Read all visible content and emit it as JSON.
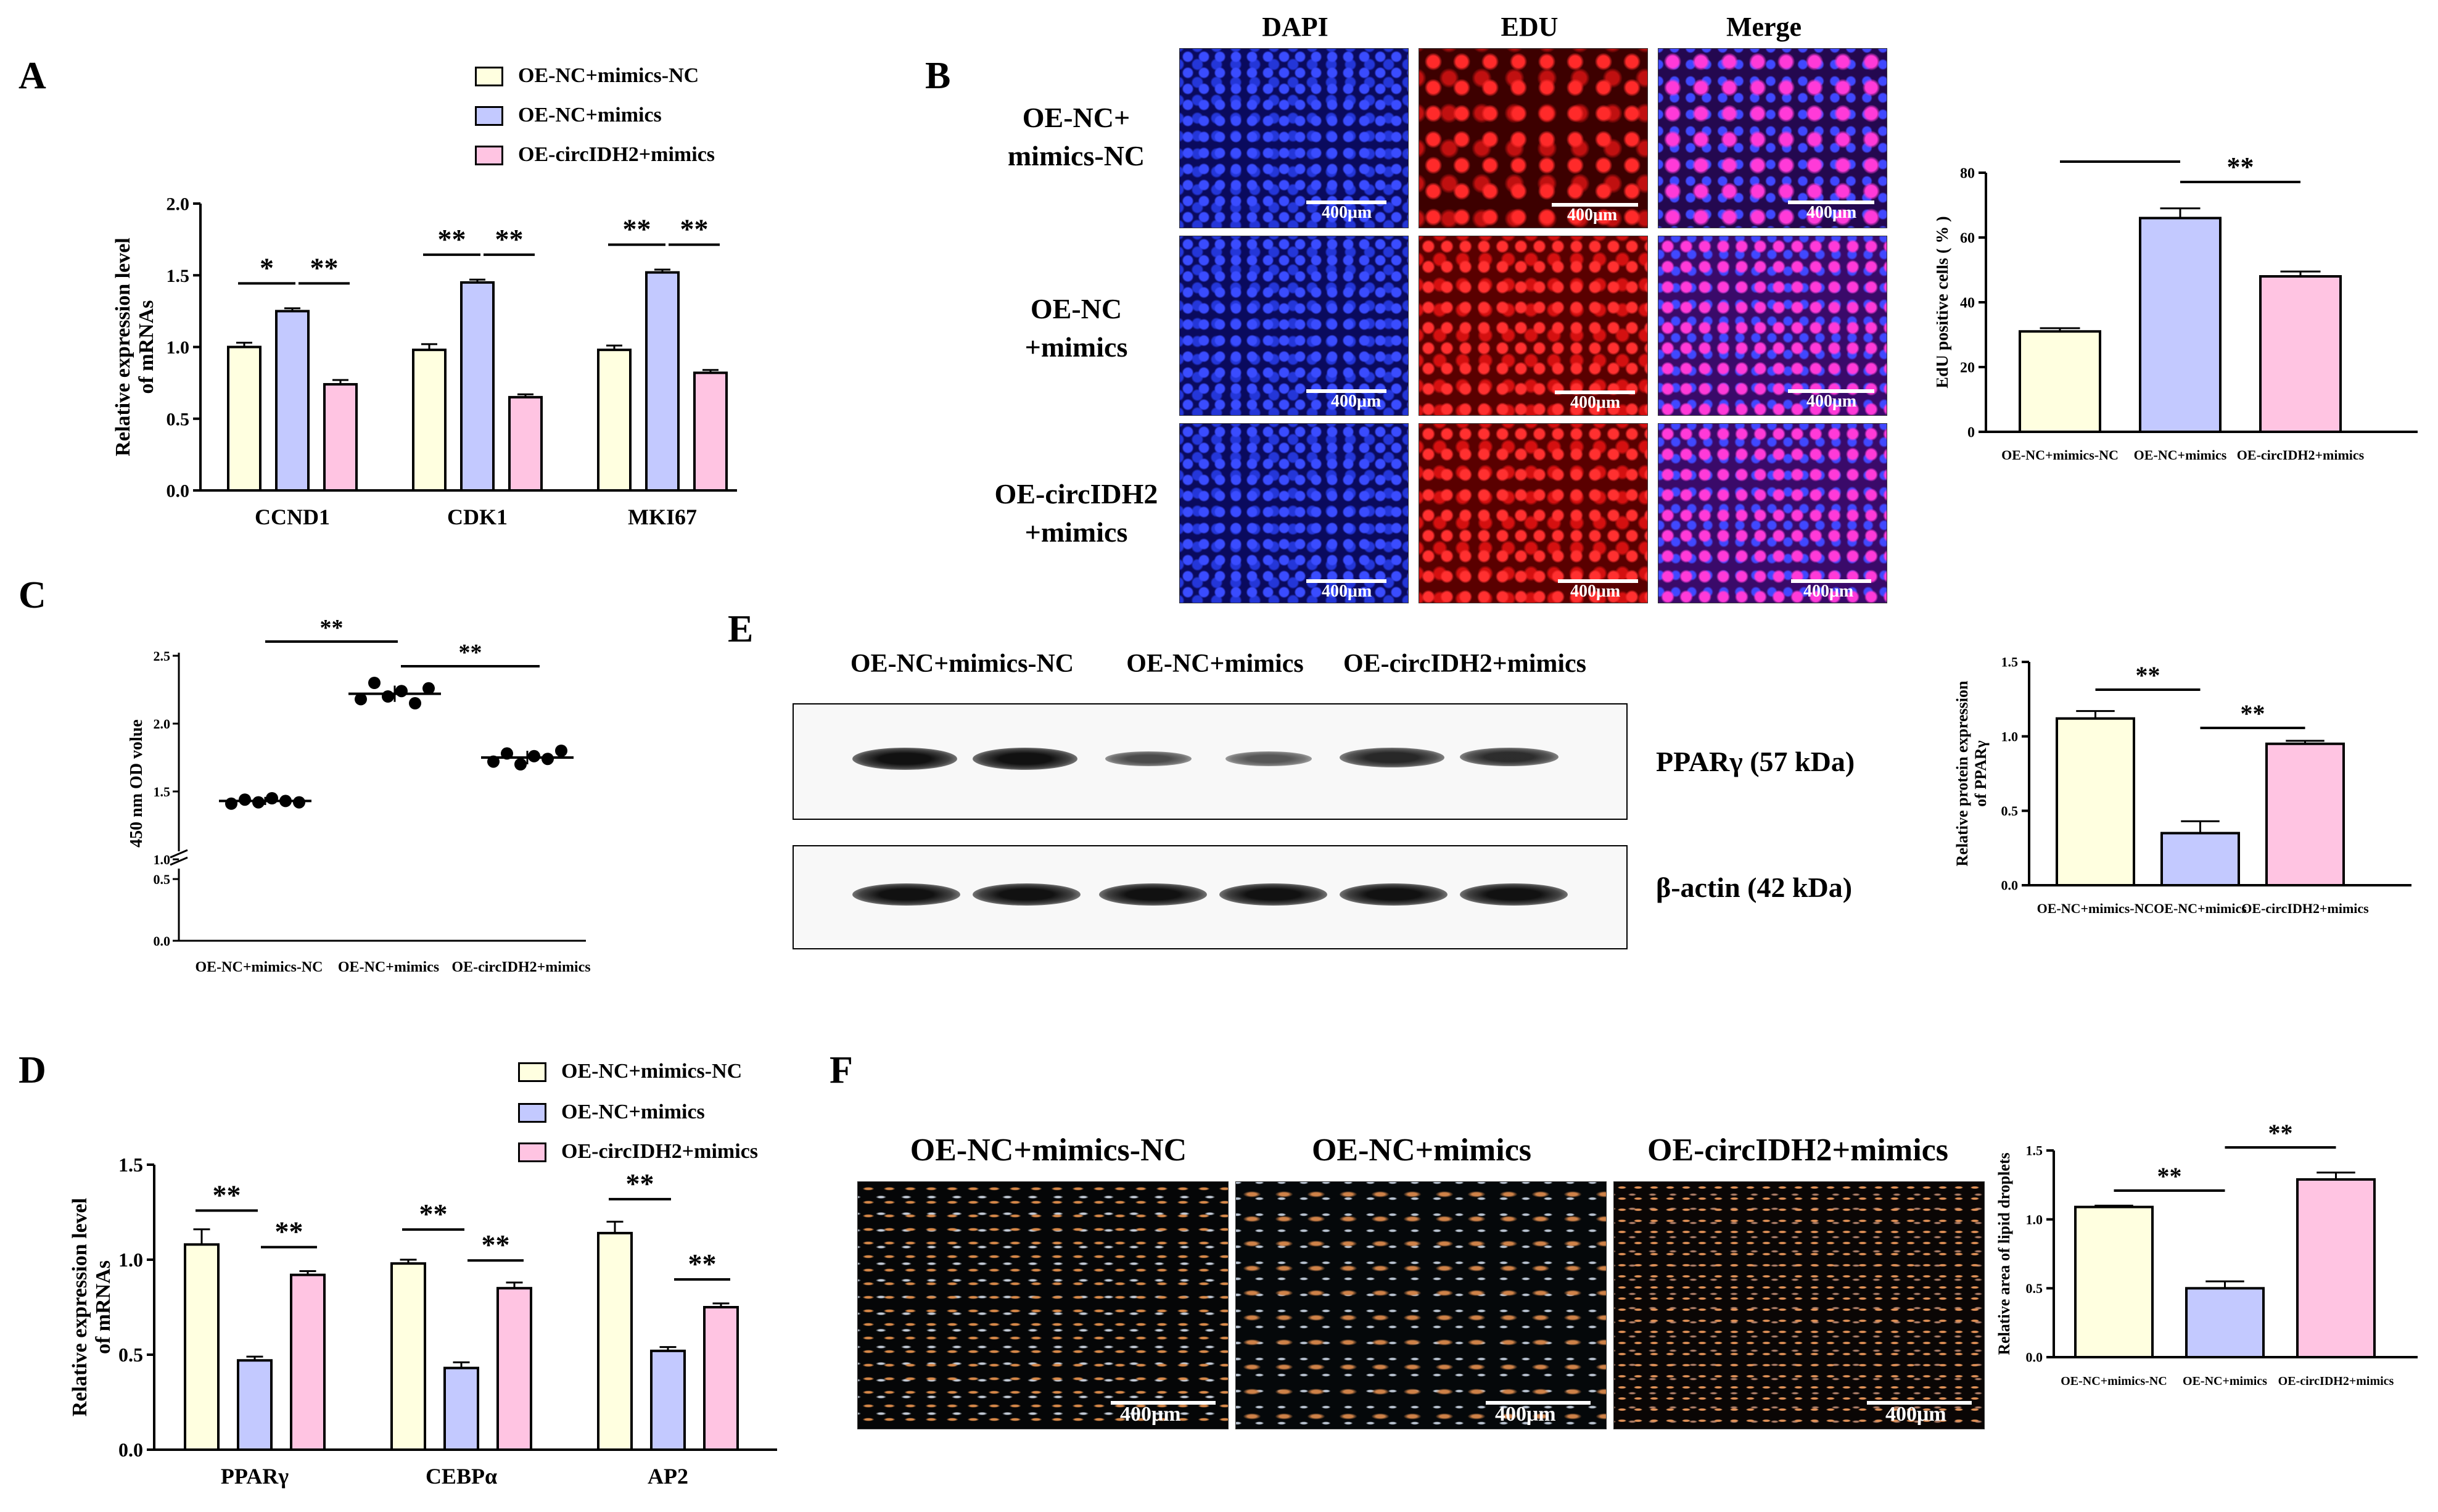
{
  "panels": {
    "A": "A",
    "B": "B",
    "C": "C",
    "D": "D",
    "E": "E",
    "F": "F"
  },
  "colors": {
    "nc": "#FFFFE0",
    "mimics": "#C3C9FF",
    "circ": "#FFC4E2",
    "bar_stroke": "#000000"
  },
  "legend": {
    "items": [
      "OE-NC+mimics-NC",
      "OE-NC+mimics",
      "OE-circIDH2+mimics"
    ]
  },
  "panelB": {
    "columns": [
      "DAPI",
      "EDU",
      "Merge"
    ],
    "rows": [
      {
        "line1": "OE-NC+",
        "line2": "mimics-NC"
      },
      {
        "line1": "OE-NC",
        "line2": "+mimics"
      },
      {
        "line1": "OE-circIDH2",
        "line2": "+mimics"
      }
    ],
    "scale": "400μm"
  },
  "panelE": {
    "lanes": [
      "OE-NC+mimics-NC",
      "OE-NC+mimics",
      "OE-circIDH2+mimics"
    ],
    "blot1": "PPARγ (57 kDa)",
    "blot2": "β-actin (42 kDa)"
  },
  "panelF": {
    "titles": [
      "OE-NC+mimics-NC",
      "OE-NC+mimics",
      "OE-circIDH2+mimics"
    ],
    "scale": "400μm"
  },
  "chart_data": [
    {
      "id": "A",
      "type": "bar",
      "categories": [
        "CCND1",
        "CDK1",
        "MKI67"
      ],
      "series": [
        {
          "name": "OE-NC+mimics-NC",
          "values": [
            1.0,
            0.98,
            0.98
          ],
          "err": [
            0.03,
            0.04,
            0.03
          ]
        },
        {
          "name": "OE-NC+mimics",
          "values": [
            1.25,
            1.45,
            1.52
          ],
          "err": [
            0.02,
            0.02,
            0.02
          ]
        },
        {
          "name": "OE-circIDH2+mimics",
          "values": [
            0.74,
            0.65,
            0.82
          ],
          "err": [
            0.03,
            0.02,
            0.02
          ]
        }
      ],
      "ylabel": "Relative expression level of mRNAs",
      "ylim": [
        0,
        2.0
      ],
      "yticks": [
        "0.0",
        "0.5",
        "1.0",
        "1.5",
        "2.0"
      ],
      "sig": [
        [
          "*",
          "**"
        ],
        [
          "**",
          "**"
        ],
        [
          "**",
          "**"
        ]
      ]
    },
    {
      "id": "B",
      "type": "bar",
      "categories": [
        "OE-NC+mimics-NC",
        "OE-NC+mimics",
        "OE-circIDH2+mimics"
      ],
      "values": [
        31,
        66,
        48
      ],
      "err": [
        1,
        3,
        1.5
      ],
      "ylabel": "EdU positive cells ( % )",
      "ylim": [
        0,
        80
      ],
      "yticks": [
        "0",
        "20",
        "40",
        "60",
        "80"
      ],
      "sig": [
        "**",
        "**"
      ]
    },
    {
      "id": "C",
      "type": "scatter",
      "categories": [
        "OE-NC+mimics-NC",
        "OE-NC+mimics",
        "OE-circIDH2+mimics"
      ],
      "points": [
        [
          1.41,
          1.44,
          1.42,
          1.45,
          1.43,
          1.42
        ],
        [
          2.18,
          2.3,
          2.2,
          2.24,
          2.15,
          2.26
        ],
        [
          1.72,
          1.78,
          1.7,
          1.76,
          1.74,
          1.8
        ]
      ],
      "means": [
        1.43,
        2.22,
        1.75
      ],
      "sd": [
        0.03,
        0.06,
        0.05
      ],
      "ylabel": "450 nm OD volue",
      "yticks": [
        "0.0",
        "0.5",
        "1.0",
        "1.5",
        "2.0",
        "2.5"
      ],
      "sig": [
        "**",
        "**"
      ]
    },
    {
      "id": "D",
      "type": "bar",
      "categories": [
        "PPARγ",
        "CEBPα",
        "AP2"
      ],
      "series": [
        {
          "name": "OE-NC+mimics-NC",
          "values": [
            1.08,
            0.98,
            1.14
          ],
          "err": [
            0.08,
            0.02,
            0.06
          ]
        },
        {
          "name": "OE-NC+mimics",
          "values": [
            0.47,
            0.43,
            0.52
          ],
          "err": [
            0.02,
            0.03,
            0.02
          ]
        },
        {
          "name": "OE-circIDH2+mimics",
          "values": [
            0.92,
            0.85,
            0.75
          ],
          "err": [
            0.02,
            0.03,
            0.02
          ]
        }
      ],
      "ylabel": "Relative expression level of mRNAs",
      "ylim": [
        0,
        1.5
      ],
      "yticks": [
        "0.0",
        "0.5",
        "1.0",
        "1.5"
      ],
      "sig": [
        [
          "**",
          "**"
        ],
        [
          "**",
          "**"
        ],
        [
          "**",
          "**"
        ]
      ]
    },
    {
      "id": "E",
      "type": "bar",
      "categories": [
        "OE-NC+mimics-NC",
        "OE-NC+mimics",
        "OE-circIDH2+mimics"
      ],
      "values": [
        1.12,
        0.35,
        0.95
      ],
      "err": [
        0.05,
        0.08,
        0.02
      ],
      "ylabel": "Relative protein expression of PPARγ",
      "ylim": [
        0,
        1.5
      ],
      "yticks": [
        "0.0",
        "0.5",
        "1.0",
        "1.5"
      ],
      "sig": [
        "**",
        "**"
      ]
    },
    {
      "id": "F",
      "type": "bar",
      "categories": [
        "OE-NC+mimics-NC",
        "OE-NC+mimics",
        "OE-circIDH2+mimics"
      ],
      "values": [
        1.09,
        0.5,
        1.29
      ],
      "err": [
        0.01,
        0.05,
        0.05
      ],
      "ylabel": "Relative area of lipid droplets",
      "ylim": [
        0,
        1.5
      ],
      "yticks": [
        "0.0",
        "0.5",
        "1.0",
        "1.5"
      ],
      "sig": [
        "**",
        "**"
      ]
    }
  ]
}
